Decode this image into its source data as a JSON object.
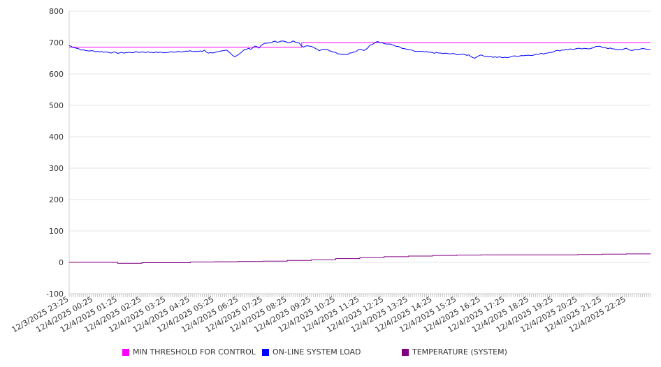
{
  "chart_data": {
    "type": "line",
    "title": "",
    "xlabel": "",
    "ylabel": "",
    "ylim": [
      -100,
      800
    ],
    "yticks": [
      800,
      700,
      600,
      500,
      400,
      300,
      200,
      100,
      0,
      -100
    ],
    "x_unit": "hours since 12/3/2025 23:25 (5-minute samples)",
    "xlim": [
      0,
      24
    ],
    "xtick_labels": [
      "12/3/2025 23:25",
      "12/4/2025 00:25",
      "12/4/2025 01:25",
      "12/4/2025 02:25",
      "12/4/2025 03:25",
      "12/4/2025 04:25",
      "12/4/2025 05:25",
      "12/4/2025 06:25",
      "12/4/2025 07:25",
      "12/4/2025 08:25",
      "12/4/2025 09:25",
      "12/4/2025 10:25",
      "12/4/2025 11:25",
      "12/4/2025 12:25",
      "12/4/2025 13:25",
      "12/4/2025 14:25",
      "12/4/2025 15:25",
      "12/4/2025 16:25",
      "12/4/2025 17:25",
      "12/4/2025 18:25",
      "12/4/2025 19:25",
      "12/4/2025 20:25",
      "12/4/2025 21:25",
      "12/4/2025 22:25"
    ],
    "grid": true,
    "legend_position": "bottom",
    "series": [
      {
        "name": "MIN THRESHOLD FOR CONTROL",
        "color": "#ff00ff",
        "step": true,
        "points": [
          [
            0,
            685
          ],
          [
            9.55,
            685
          ],
          [
            9.6,
            700
          ],
          [
            24,
            700
          ]
        ]
      },
      {
        "name": "ON-LINE SYSTEM LOAD",
        "color": "#0000ff",
        "points": [
          [
            0,
            690
          ],
          [
            0.6,
            675
          ],
          [
            1.5,
            670
          ],
          [
            2,
            667
          ],
          [
            3,
            670
          ],
          [
            4,
            668
          ],
          [
            4.5,
            672
          ],
          [
            5.5,
            672
          ],
          [
            5.6,
            677
          ],
          [
            5.7,
            667
          ],
          [
            6.2,
            670
          ],
          [
            6.5,
            675
          ],
          [
            6.85,
            655
          ],
          [
            7.3,
            680
          ],
          [
            7.5,
            680
          ],
          [
            7.7,
            690
          ],
          [
            7.85,
            683
          ],
          [
            8,
            695
          ],
          [
            8.5,
            703
          ],
          [
            8.5,
            700
          ],
          [
            8.75,
            706
          ],
          [
            9.1,
            698
          ],
          [
            9.2,
            705
          ],
          [
            9.5,
            700
          ],
          [
            9.65,
            685
          ],
          [
            9.9,
            690
          ],
          [
            10.1,
            686
          ],
          [
            10.3,
            675
          ],
          [
            10.5,
            680
          ],
          [
            10.9,
            672
          ],
          [
            11.1,
            665
          ],
          [
            11.4,
            662
          ],
          [
            11.8,
            670
          ],
          [
            12,
            678
          ],
          [
            12.2,
            675
          ],
          [
            12.4,
            690
          ],
          [
            12.7,
            705
          ],
          [
            13,
            697
          ],
          [
            13.4,
            692
          ],
          [
            13.8,
            680
          ],
          [
            14.3,
            672
          ],
          [
            15,
            668
          ],
          [
            15.5,
            665
          ],
          [
            16,
            663
          ],
          [
            16.5,
            660
          ],
          [
            16.75,
            650
          ],
          [
            16.9,
            660
          ],
          [
            17.5,
            654
          ],
          [
            18,
            652
          ],
          [
            18.5,
            658
          ],
          [
            19,
            660
          ],
          [
            19.6,
            665
          ],
          [
            20,
            672
          ],
          [
            20.5,
            678
          ],
          [
            21,
            680
          ],
          [
            21.4,
            680
          ],
          [
            21.8,
            688
          ],
          [
            22.2,
            683
          ],
          [
            22.6,
            677
          ],
          [
            23,
            680
          ],
          [
            23.2,
            675
          ],
          [
            23.6,
            680
          ],
          [
            24.0,
            678
          ]
        ]
      },
      {
        "name": "TEMPERATURE (SYSTEM)",
        "color": "#800080",
        "step": true,
        "points": [
          [
            0,
            0
          ],
          [
            1,
            0
          ],
          [
            2,
            -3
          ],
          [
            3,
            -1
          ],
          [
            4,
            -1
          ],
          [
            5,
            1
          ],
          [
            6,
            2
          ],
          [
            7,
            3
          ],
          [
            8,
            4
          ],
          [
            9,
            6
          ],
          [
            10,
            8
          ],
          [
            11,
            12
          ],
          [
            12,
            15
          ],
          [
            13,
            18
          ],
          [
            14,
            20
          ],
          [
            15,
            22
          ],
          [
            16,
            23
          ],
          [
            17,
            24
          ],
          [
            18,
            24
          ],
          [
            19,
            24
          ],
          [
            20,
            24
          ],
          [
            21,
            25
          ],
          [
            22,
            26
          ],
          [
            23,
            27
          ],
          [
            24,
            28
          ]
        ]
      }
    ]
  }
}
